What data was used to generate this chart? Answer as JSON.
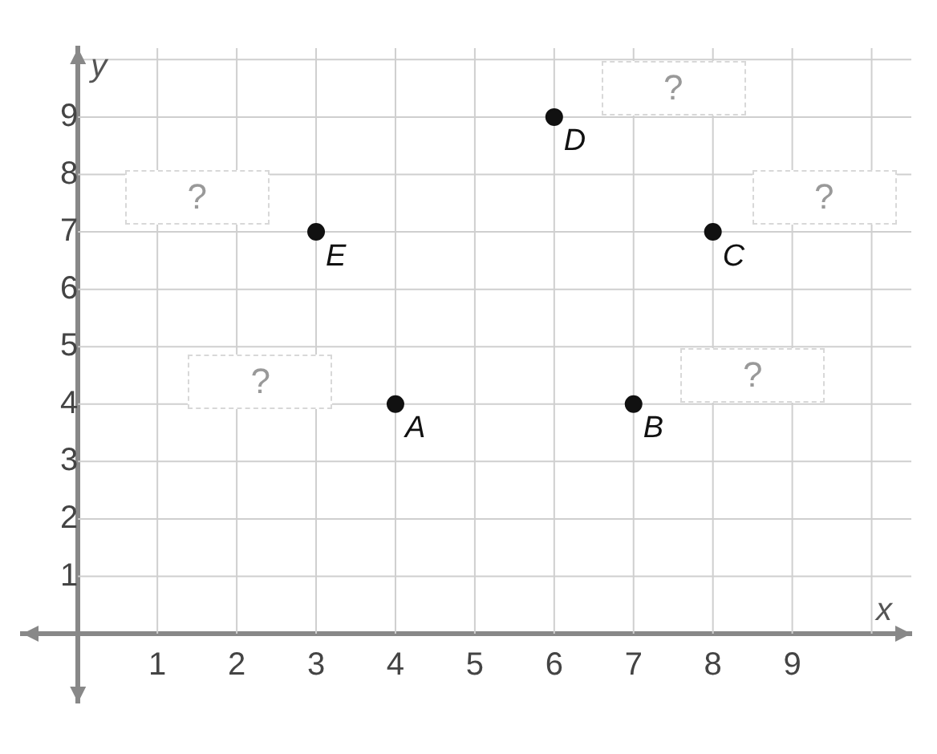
{
  "chart_data": {
    "type": "scatter",
    "xlabel": "x",
    "ylabel": "y",
    "x": [
      4,
      7,
      8,
      6,
      3
    ],
    "values": [
      4,
      4,
      7,
      9,
      7
    ],
    "value_labels": [
      "A",
      "B",
      "C",
      "D",
      "E"
    ],
    "color": "#111111",
    "marker": "circle",
    "xlim": [
      -0.7,
      10.5
    ],
    "ylim": [
      -1.2,
      10.2
    ],
    "xticks": [
      {
        "value": 0,
        "label": null
      },
      1,
      2,
      3,
      4,
      5,
      6,
      7,
      8,
      9,
      {
        "value": 10,
        "label": null
      }
    ],
    "yticks": [
      {
        "value": 0,
        "label": null
      },
      1,
      2,
      3,
      4,
      5,
      6,
      7,
      8,
      9,
      {
        "value": 10,
        "label": null
      }
    ],
    "grid": true,
    "legend": false,
    "annotations": [
      "?",
      "?",
      "?",
      "?",
      "?"
    ]
  }
}
